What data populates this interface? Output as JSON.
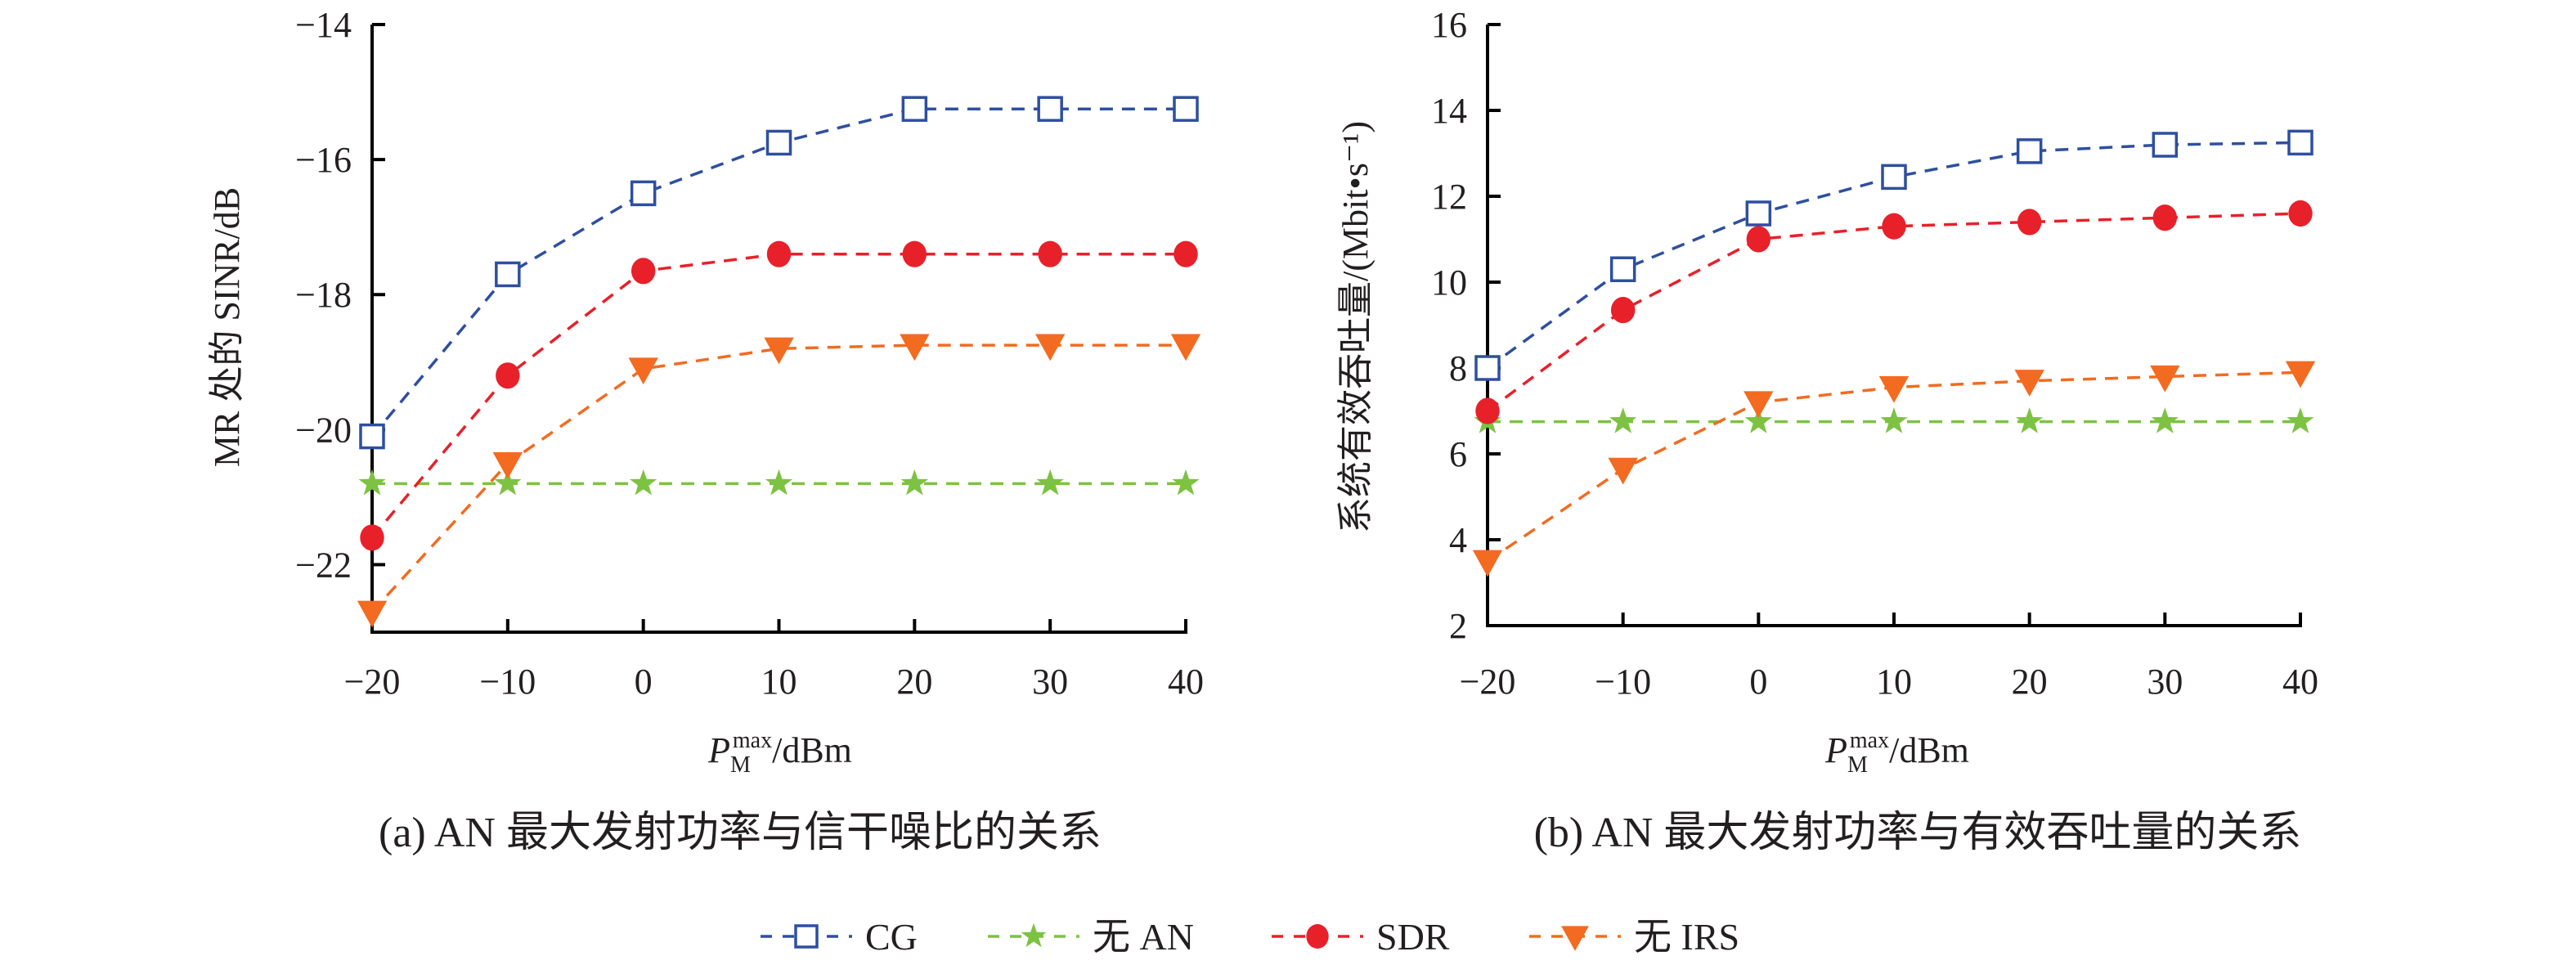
{
  "legend": [
    {
      "key": "cg",
      "label": "CG",
      "color": "#2e4fa0",
      "marker": "square-open"
    },
    {
      "key": "noan",
      "label": "无 AN",
      "color": "#7dc242",
      "marker": "star"
    },
    {
      "key": "sdr",
      "label": "SDR",
      "color": "#e8202a",
      "marker": "circle"
    },
    {
      "key": "noirs",
      "label": "无 IRS",
      "color": "#f26b21",
      "marker": "triangle-down"
    }
  ],
  "chart_data": [
    {
      "id": "a",
      "type": "line",
      "title": "(a) AN 最大发射功率与信干噪比的关系",
      "xlabel": {
        "main": "P",
        "sub": "M",
        "sup": "max",
        "unit": "/dBm"
      },
      "ylabel": "MR 处的 SINR/dB",
      "x": [
        -20,
        -10,
        0,
        10,
        20,
        30,
        40
      ],
      "xticks": [
        "−20",
        "−10",
        "0",
        "10",
        "20",
        "30",
        "40"
      ],
      "xlim": [
        -20,
        40
      ],
      "ylim": [
        -23,
        -14
      ],
      "yticks": [
        -14,
        -16,
        -18,
        -20,
        -22
      ],
      "ytick_labels": [
        "−14",
        "−16",
        "−18",
        "−20",
        "−22"
      ],
      "grid": false,
      "legend_position": "bottom-center (shared)",
      "series": [
        {
          "key": "cg",
          "name": "CG",
          "values": [
            -20.1,
            -17.7,
            -16.5,
            -15.75,
            -15.25,
            -15.25,
            -15.25
          ]
        },
        {
          "key": "noan",
          "name": "无 AN",
          "values": [
            -20.8,
            -20.8,
            -20.8,
            -20.8,
            -20.8,
            -20.8,
            -20.8
          ]
        },
        {
          "key": "sdr",
          "name": "SDR",
          "values": [
            -21.6,
            -19.2,
            -17.65,
            -17.4,
            -17.4,
            -17.4,
            -17.4
          ]
        },
        {
          "key": "noirs",
          "name": "无 IRS",
          "values": [
            -22.7,
            -20.5,
            -19.1,
            -18.8,
            -18.75,
            -18.75,
            -18.75
          ]
        }
      ]
    },
    {
      "id": "b",
      "type": "line",
      "title": "(b) AN 最大发射功率与有效吞吐量的关系",
      "xlabel": {
        "main": "P",
        "sub": "M",
        "sup": "max",
        "unit": "/dBm"
      },
      "ylabel": "系统有效吞吐量/(Mbit•s⁻¹)",
      "x": [
        -20,
        -10,
        0,
        10,
        20,
        30,
        40
      ],
      "xticks": [
        "−20",
        "−10",
        "0",
        "10",
        "20",
        "30",
        "40"
      ],
      "xlim": [
        -20,
        40
      ],
      "ylim": [
        2,
        16
      ],
      "yticks": [
        16,
        14,
        12,
        10,
        8,
        6,
        4,
        2
      ],
      "ytick_labels": [
        "16",
        "14",
        "12",
        "10",
        "8",
        "6",
        "4",
        "2"
      ],
      "grid": false,
      "legend_position": "bottom-center (shared)",
      "series": [
        {
          "key": "cg",
          "name": "CG",
          "values": [
            8.0,
            10.3,
            11.6,
            12.45,
            13.05,
            13.2,
            13.25
          ]
        },
        {
          "key": "noan",
          "name": "无 AN",
          "values": [
            6.75,
            6.75,
            6.75,
            6.75,
            6.75,
            6.75,
            6.75
          ]
        },
        {
          "key": "sdr",
          "name": "SDR",
          "values": [
            7.0,
            9.35,
            11.0,
            11.3,
            11.4,
            11.5,
            11.6
          ]
        },
        {
          "key": "noirs",
          "name": "无 IRS",
          "values": [
            3.5,
            5.65,
            7.2,
            7.55,
            7.7,
            7.8,
            7.9
          ]
        }
      ]
    }
  ]
}
